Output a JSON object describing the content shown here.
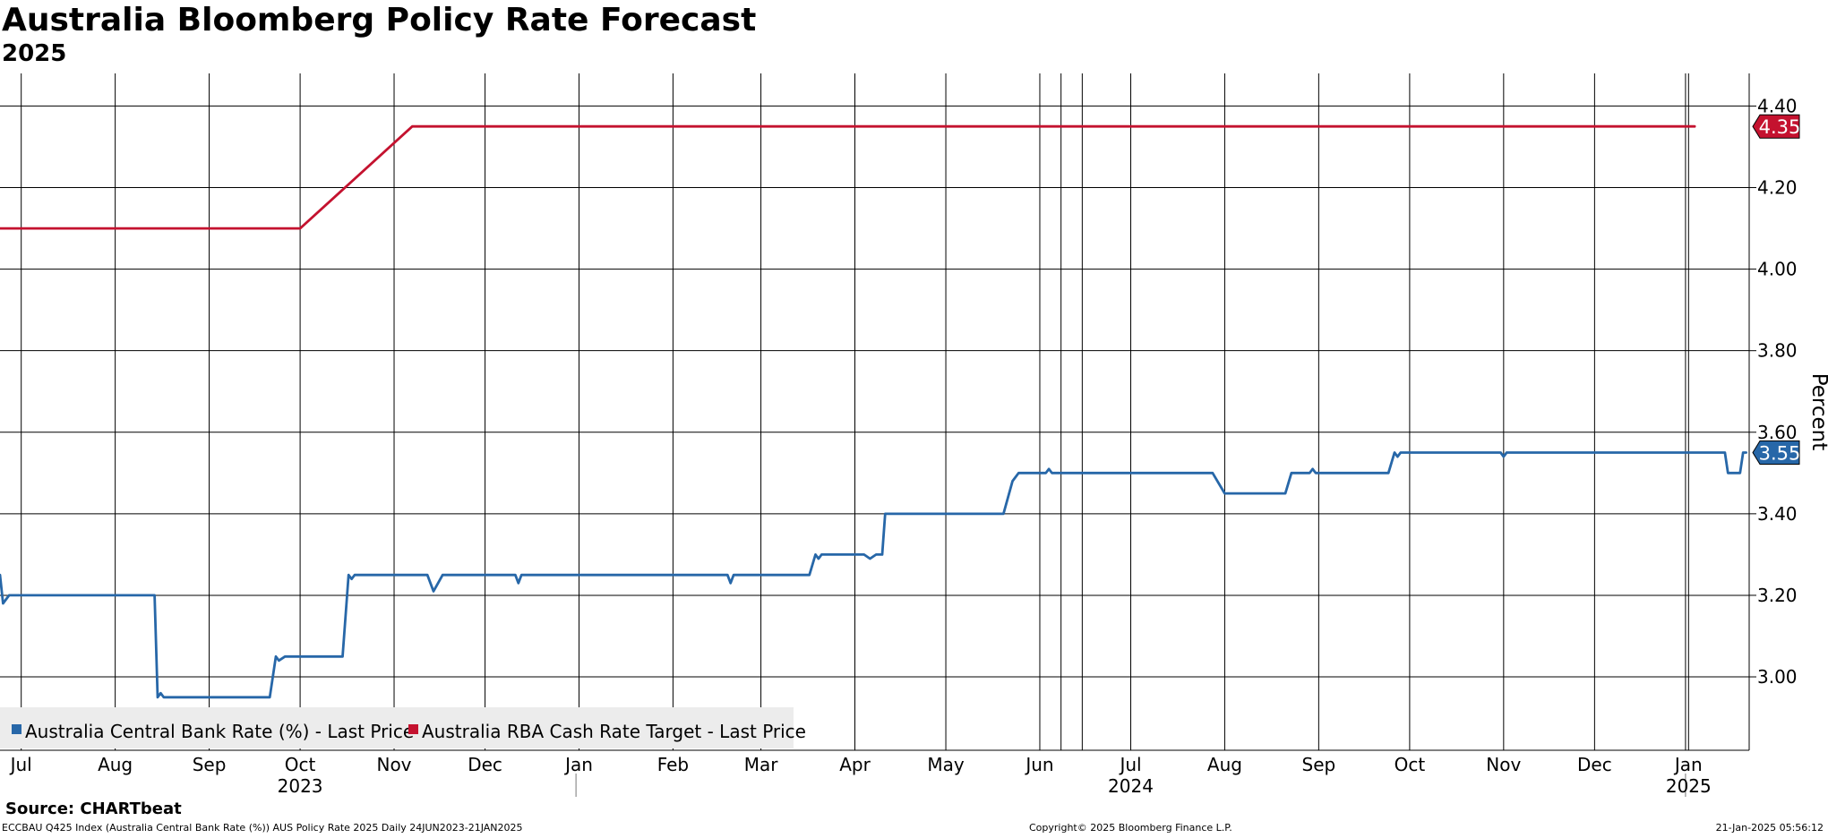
{
  "header": {
    "title": "Australia Bloomberg Policy Rate Forecast",
    "subtitle": "2025"
  },
  "footer": {
    "source": "Source: CHARTbeat",
    "meta_left": "ECCBAU Q425 Index (Australia Central Bank Rate (%)) AUS Policy Rate 2025  Daily 24JUN2023-21JAN2025",
    "copyright": "Copyright© 2025 Bloomberg Finance L.P.",
    "timestamp": "21-Jan-2025 05:56:12"
  },
  "colors": {
    "central_bank": "#2767a8",
    "cash_rate": "#c4122f",
    "grid": "#000000",
    "legend_bg": "#ececec"
  },
  "chart_data": {
    "type": "line",
    "title": "Australia Bloomberg Policy Rate Forecast",
    "subtitle": "2025",
    "xlabel": "",
    "ylabel": "Percent",
    "x_range": [
      "2023-06-24",
      "2025-01-21"
    ],
    "ylim": [
      2.82,
      4.48
    ],
    "y_ticks": [
      "3.00",
      "3.20",
      "3.40",
      "3.60",
      "3.80",
      "4.00",
      "4.20",
      "4.40"
    ],
    "y_axis_side": "right",
    "grid": true,
    "legend_position": "bottom-left",
    "x_month_ticks": [
      {
        "label": "Jul",
        "date": "2023-07-01"
      },
      {
        "label": "Aug",
        "date": "2023-08-01"
      },
      {
        "label": "Sep",
        "date": "2023-09-01"
      },
      {
        "label": "Oct",
        "date": "2023-10-01"
      },
      {
        "label": "Nov",
        "date": "2023-11-01"
      },
      {
        "label": "Dec",
        "date": "2023-12-01"
      },
      {
        "label": "Jan",
        "date": "2024-01-01"
      },
      {
        "label": "Feb",
        "date": "2024-02-01"
      },
      {
        "label": "Mar",
        "date": "2024-03-01"
      },
      {
        "label": "Apr",
        "date": "2024-04-01"
      },
      {
        "label": "May",
        "date": "2024-05-01"
      },
      {
        "label": "Jun",
        "date": "2024-06-01"
      },
      {
        "label": "Jul",
        "date": "2024-07-01"
      },
      {
        "label": "Aug",
        "date": "2024-08-01"
      },
      {
        "label": "Sep",
        "date": "2024-09-01"
      },
      {
        "label": "Oct",
        "date": "2024-10-01"
      },
      {
        "label": "Nov",
        "date": "2024-11-01"
      },
      {
        "label": "Dec",
        "date": "2024-12-01"
      },
      {
        "label": "Jan",
        "date": "2025-01-01"
      }
    ],
    "x_year_labels": [
      {
        "label": "2023",
        "date": "2023-10-01"
      },
      {
        "label": "2024",
        "date": "2024-07-01"
      },
      {
        "label": "2025",
        "date": "2025-01-01"
      }
    ],
    "x_year_dividers": [
      "2023-12-31",
      "2024-12-31"
    ],
    "x_event_gridlines": [
      "2024-06-08",
      "2024-06-15",
      "2024-12-31"
    ],
    "series": [
      {
        "name": "Australia Central Bank Rate (%) - Last Price",
        "color": "#2767a8",
        "last_value": "3.55",
        "points": [
          [
            "2023-06-24",
            3.25
          ],
          [
            "2023-06-25",
            3.18
          ],
          [
            "2023-06-27",
            3.2
          ],
          [
            "2023-08-14",
            3.2
          ],
          [
            "2023-08-15",
            2.95
          ],
          [
            "2023-08-16",
            2.96
          ],
          [
            "2023-08-17",
            2.95
          ],
          [
            "2023-09-21",
            2.95
          ],
          [
            "2023-09-23",
            3.05
          ],
          [
            "2023-09-24",
            3.04
          ],
          [
            "2023-09-26",
            3.05
          ],
          [
            "2023-10-15",
            3.05
          ],
          [
            "2023-10-17",
            3.25
          ],
          [
            "2023-10-18",
            3.24
          ],
          [
            "2023-10-19",
            3.25
          ],
          [
            "2023-11-12",
            3.25
          ],
          [
            "2023-11-14",
            3.21
          ],
          [
            "2023-11-17",
            3.25
          ],
          [
            "2023-12-11",
            3.25
          ],
          [
            "2023-12-12",
            3.23
          ],
          [
            "2023-12-13",
            3.25
          ],
          [
            "2024-02-19",
            3.25
          ],
          [
            "2024-02-20",
            3.23
          ],
          [
            "2024-02-21",
            3.25
          ],
          [
            "2024-03-17",
            3.25
          ],
          [
            "2024-03-19",
            3.3
          ],
          [
            "2024-03-20",
            3.29
          ],
          [
            "2024-03-21",
            3.3
          ],
          [
            "2024-04-04",
            3.3
          ],
          [
            "2024-04-06",
            3.29
          ],
          [
            "2024-04-08",
            3.3
          ],
          [
            "2024-04-10",
            3.3
          ],
          [
            "2024-04-11",
            3.4
          ],
          [
            "2024-05-20",
            3.4
          ],
          [
            "2024-05-23",
            3.48
          ],
          [
            "2024-05-25",
            3.5
          ],
          [
            "2024-06-03",
            3.5
          ],
          [
            "2024-06-04",
            3.51
          ],
          [
            "2024-06-05",
            3.5
          ],
          [
            "2024-07-28",
            3.5
          ],
          [
            "2024-08-01",
            3.45
          ],
          [
            "2024-08-21",
            3.45
          ],
          [
            "2024-08-23",
            3.5
          ],
          [
            "2024-08-29",
            3.5
          ],
          [
            "2024-08-30",
            3.51
          ],
          [
            "2024-08-31",
            3.5
          ],
          [
            "2024-09-24",
            3.5
          ],
          [
            "2024-09-26",
            3.55
          ],
          [
            "2024-09-27",
            3.54
          ],
          [
            "2024-09-28",
            3.55
          ],
          [
            "2024-10-31",
            3.55
          ],
          [
            "2024-11-01",
            3.54
          ],
          [
            "2024-11-02",
            3.55
          ],
          [
            "2025-01-13",
            3.55
          ],
          [
            "2025-01-14",
            3.5
          ],
          [
            "2025-01-18",
            3.5
          ],
          [
            "2025-01-19",
            3.55
          ],
          [
            "2025-01-20",
            3.55
          ]
        ]
      },
      {
        "name": "Australia RBA Cash Rate Target - Last Price",
        "color": "#c4122f",
        "last_value": "4.35",
        "points": [
          [
            "2023-06-24",
            4.1
          ],
          [
            "2023-10-01",
            4.1
          ],
          [
            "2023-11-07",
            4.35
          ],
          [
            "2025-01-03",
            4.35
          ]
        ]
      }
    ]
  }
}
